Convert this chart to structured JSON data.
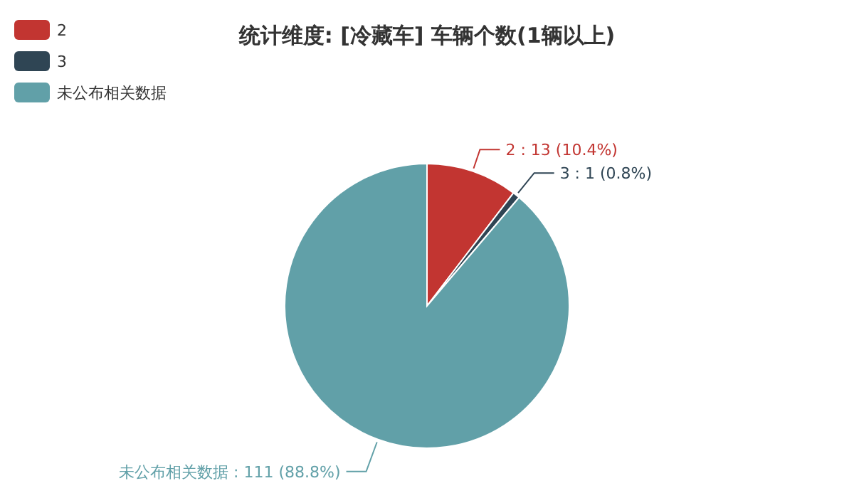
{
  "chart_data": {
    "type": "pie",
    "title": "统计维度: [冷藏车] 车辆个数(1辆以上)",
    "categories": [
      "2",
      "3",
      "未公布相关数据"
    ],
    "values": [
      13,
      1,
      111
    ],
    "colors": [
      "#c23531",
      "#2f4554",
      "#61a0a8"
    ],
    "value_labels": [
      "2 : 13 (10.4%)",
      "3 : 1 (0.8%)",
      "未公布相关数据 : 111 (88.8%)"
    ],
    "legend": "top left"
  }
}
